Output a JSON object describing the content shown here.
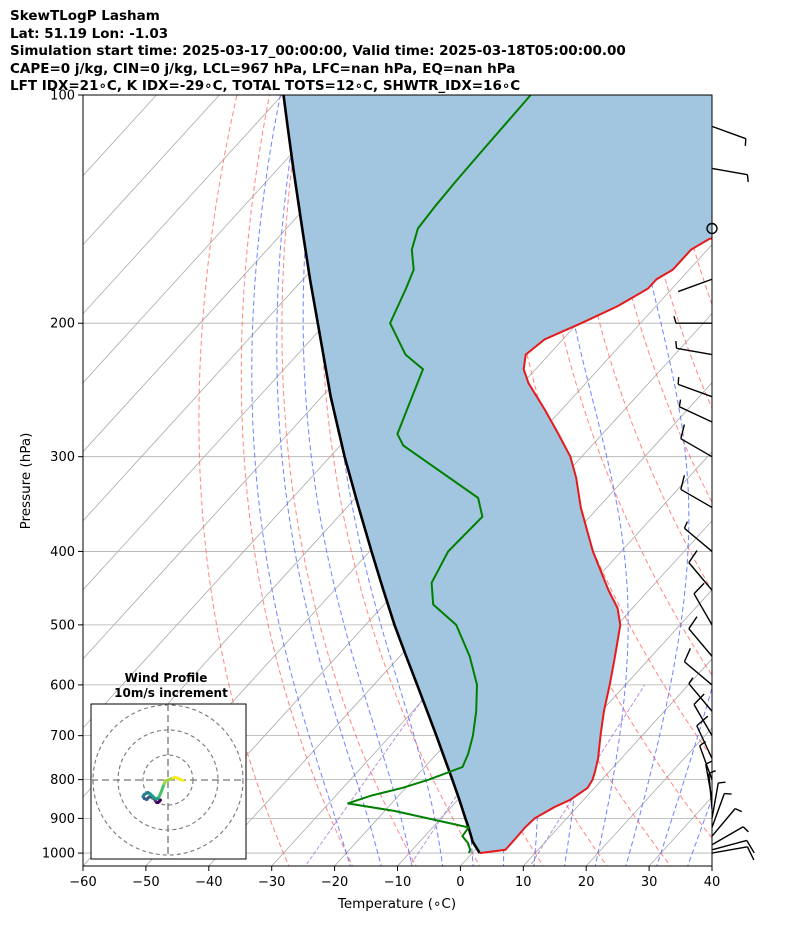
{
  "header": {
    "line1": "SkewTLogP Lasham",
    "line2": "Lat: 51.19   Lon: -1.03",
    "line3": "Simulation start time: 2025-03-17_00:00:00, Valid time: 2025-03-18T05:00:00.00",
    "line4": "CAPE=0 j/kg, CIN=0 j/kg, LCL=967 hPa, LFC=nan hPa, EQ=nan hPa",
    "line5": "LFT IDX=21∘C, K IDX=-29∘C, TOTAL TOTS=12∘C, SHWTR_IDX=16∘C"
  },
  "colors": {
    "temperature": "#e41a1c",
    "dewpoint": "#008000",
    "parcel": "#000000",
    "shading": "#a3c6e0",
    "dry_adiabat": "#ff6666",
    "moist_adiabat": "#4d61ff",
    "mixing_ratio": "#9966cc",
    "isotherm": "#aaaaaa"
  },
  "inset": {
    "title_line1": "Wind Profile",
    "title_line2": "10m/s increment"
  },
  "chart_data": {
    "type": "skew-t",
    "xlabel": "Temperature (∘C)",
    "ylabel": "Pressure (hPa)",
    "xlim": [
      -60,
      40
    ],
    "ylim": [
      1040,
      100
    ],
    "y_scale": "log",
    "x_ticks": [
      -60,
      -50,
      -40,
      -30,
      -20,
      -10,
      0,
      10,
      20,
      30,
      40
    ],
    "y_ticks": [
      1000,
      900,
      800,
      700,
      600,
      500,
      400,
      300,
      200,
      100
    ],
    "grid": true,
    "temperature": {
      "pressure": [
        1000,
        990,
        960,
        925,
        900,
        870,
        850,
        820,
        800,
        780,
        750,
        700,
        650,
        600,
        550,
        500,
        475,
        450,
        400,
        350,
        320,
        300,
        280,
        260,
        240,
        230,
        220,
        210,
        200,
        190,
        180,
        175,
        170,
        160,
        155,
        150,
        140,
        130,
        120,
        110,
        100
      ],
      "temp": [
        1.2,
        4.8,
        4.8,
        4.7,
        4.9,
        6.4,
        7.9,
        8.9,
        8.5,
        7.7,
        6.3,
        3.4,
        0.4,
        -2.5,
        -5.8,
        -9.5,
        -12.4,
        -16.4,
        -24.5,
        -32.8,
        -37.8,
        -41.8,
        -47.0,
        -52.7,
        -59.1,
        -61.9,
        -63.7,
        -62.9,
        -59.4,
        -56.1,
        -53.8,
        -53.8,
        -52.6,
        -52.6,
        -51.3,
        -47.9,
        -46.0,
        -47.2,
        -48.7,
        -51.7,
        -55.7
      ]
    },
    "dewpoint": {
      "pressure": [
        1000,
        990,
        970,
        950,
        925,
        880,
        860,
        840,
        820,
        800,
        770,
        740,
        700,
        650,
        600,
        550,
        500,
        470,
        440,
        400,
        360,
        340,
        290,
        280,
        260,
        230,
        220,
        200,
        180,
        170,
        160,
        150,
        140,
        130,
        120,
        100
      ],
      "dew": [
        -0.5,
        -0.8,
        -2.1,
        -4.0,
        -4.3,
        -18.4,
        -27.0,
        -24.4,
        -20.5,
        -17.5,
        -14.0,
        -15.0,
        -16.9,
        -19.9,
        -23.6,
        -28.9,
        -35.6,
        -42.2,
        -45.6,
        -47.5,
        -47.1,
        -50.5,
        -70.0,
        -72.6,
        -74.6,
        -77.9,
        -82.8,
        -89.8,
        -92.3,
        -93.8,
        -97.0,
        -99.1,
        -99.6,
        -99.9,
        -100.1,
        -100.5
      ]
    },
    "parcel": {
      "pressure": [
        1000,
        990,
        967,
        925,
        900,
        850,
        800,
        750,
        700,
        650,
        600,
        550,
        500,
        450,
        400,
        350,
        300,
        250,
        200,
        175,
        150,
        125,
        110,
        100
      ],
      "temp": [
        1.2,
        0.4,
        -1.5,
        -4.3,
        -6.1,
        -9.8,
        -13.8,
        -18.1,
        -22.7,
        -27.7,
        -33.1,
        -39.0,
        -45.4,
        -52.2,
        -59.7,
        -68.1,
        -77.7,
        -88.6,
        -101.3,
        -108.9,
        -117.5,
        -127.6,
        -134.6,
        -139.8
      ]
    },
    "wind_barbs": [
      {
        "pressure": 1000,
        "dir": 80,
        "speed": 11
      },
      {
        "pressure": 990,
        "dir": 75,
        "speed": 11
      },
      {
        "pressure": 975,
        "dir": 60,
        "speed": 9
      },
      {
        "pressure": 950,
        "dir": 40,
        "speed": 8
      },
      {
        "pressure": 925,
        "dir": 20,
        "speed": 8
      },
      {
        "pressure": 900,
        "dir": 10,
        "speed": 7
      },
      {
        "pressure": 875,
        "dir": 355,
        "speed": 6
      },
      {
        "pressure": 850,
        "dir": 350,
        "speed": 5
      },
      {
        "pressure": 800,
        "dir": 340,
        "speed": 9
      },
      {
        "pressure": 750,
        "dir": 335,
        "speed": 10
      },
      {
        "pressure": 700,
        "dir": 330,
        "speed": 10
      },
      {
        "pressure": 650,
        "dir": 320,
        "speed": 9
      },
      {
        "pressure": 600,
        "dir": 310,
        "speed": 10
      },
      {
        "pressure": 550,
        "dir": 320,
        "speed": 10
      },
      {
        "pressure": 500,
        "dir": 330,
        "speed": 10
      },
      {
        "pressure": 450,
        "dir": 320,
        "speed": 10
      },
      {
        "pressure": 400,
        "dir": 310,
        "speed": 9
      },
      {
        "pressure": 350,
        "dir": 300,
        "speed": 10
      },
      {
        "pressure": 300,
        "dir": 300,
        "speed": 10
      },
      {
        "pressure": 270,
        "dir": 295,
        "speed": 9
      },
      {
        "pressure": 250,
        "dir": 290,
        "speed": 9
      },
      {
        "pressure": 220,
        "dir": 280,
        "speed": 7
      },
      {
        "pressure": 200,
        "dir": 270,
        "speed": 6
      },
      {
        "pressure": 175,
        "dir": 250,
        "speed": 3
      },
      {
        "pressure": 150,
        "dir": 0,
        "speed": 0
      },
      {
        "pressure": 125,
        "dir": 100,
        "speed": 5
      },
      {
        "pressure": 110,
        "dir": 110,
        "speed": 6
      }
    ],
    "hodograph": {
      "ring_step_ms": 10,
      "u": [
        -3,
        -3.5,
        -4,
        -4.5,
        -5,
        -5.5,
        -6,
        -7,
        -7.5,
        -8,
        -8.5,
        -9.5,
        -10,
        -9.5,
        -8,
        -7,
        -6,
        -5,
        -4,
        -3.5,
        -3,
        -2.5,
        -2,
        -1.5,
        -1,
        0,
        1,
        2,
        3,
        4,
        5,
        6
      ],
      "v": [
        -8,
        -8.6,
        -9,
        -9,
        -8.4,
        -7.6,
        -6.8,
        -6.5,
        -6.8,
        -7.2,
        -7.8,
        -7.4,
        -6.6,
        -5.8,
        -5.0,
        -5.6,
        -6.6,
        -7.5,
        -7.4,
        -6.5,
        -5.4,
        -4.2,
        -2.8,
        -1.4,
        -0.3,
        0,
        0.4,
        0.8,
        1.0,
        0.6,
        0.2,
        -0.2
      ]
    }
  }
}
